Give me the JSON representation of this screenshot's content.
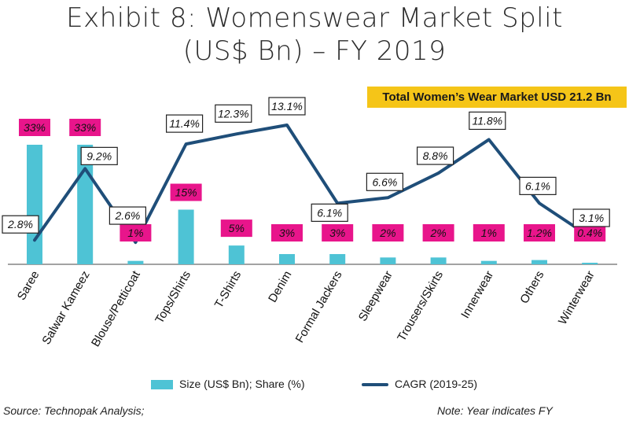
{
  "title_line1": "Exhibit 8: Womenswear Market Split",
  "title_line2": "(US$ Bn) – FY 2019",
  "banner": "Total Women’s Wear Market USD 21.2 Bn",
  "colors": {
    "bar": "#4ec3d5",
    "line": "#1f4e79",
    "share_label_bg": "#e8158b",
    "banner_bg": "#f5c518"
  },
  "chart_data": {
    "type": "bar+line",
    "categories": [
      "Saree",
      "Salwar Kameez",
      "Blouse/Petticoat",
      "Tops/Shirts",
      "T-Shirts",
      "Denim",
      "Formal Jackers",
      "Sleepwear",
      "Trousers/Skirts",
      "Innerwear",
      "Others",
      "Winterwear"
    ],
    "series": [
      {
        "name": "Size (US$ Bn); Share (%)",
        "type": "bar",
        "values": [
          7.0,
          7.0,
          0.2,
          3.2,
          1.1,
          0.6,
          0.6,
          0.4,
          0.4,
          0.2,
          0.25,
          0.08
        ],
        "labels": [
          "33%",
          "33%",
          "1%",
          "15%",
          "5%",
          "3%",
          "3%",
          "2%",
          "2%",
          "1%",
          "1.2%",
          "0.4%"
        ]
      },
      {
        "name": "CAGR (2019-25)",
        "type": "line",
        "values": [
          2.8,
          9.2,
          2.6,
          11.4,
          12.3,
          13.1,
          6.1,
          6.6,
          8.8,
          11.8,
          6.1,
          3.1
        ],
        "labels": [
          "2.8%",
          "9.2%",
          "2.6%",
          "11.4%",
          "12.3%",
          "13.1%",
          "6.1%",
          "6.6%",
          "8.8%",
          "11.8%",
          "6.1%",
          "3.1%"
        ]
      }
    ],
    "legend_position": "bottom"
  },
  "legend": {
    "bar_label": "Size (US$ Bn); Share (%)",
    "line_label": "CAGR (2019-25)"
  },
  "footer": {
    "source": "Source: Technopak Analysis;",
    "note": "Note: Year indicates FY"
  }
}
